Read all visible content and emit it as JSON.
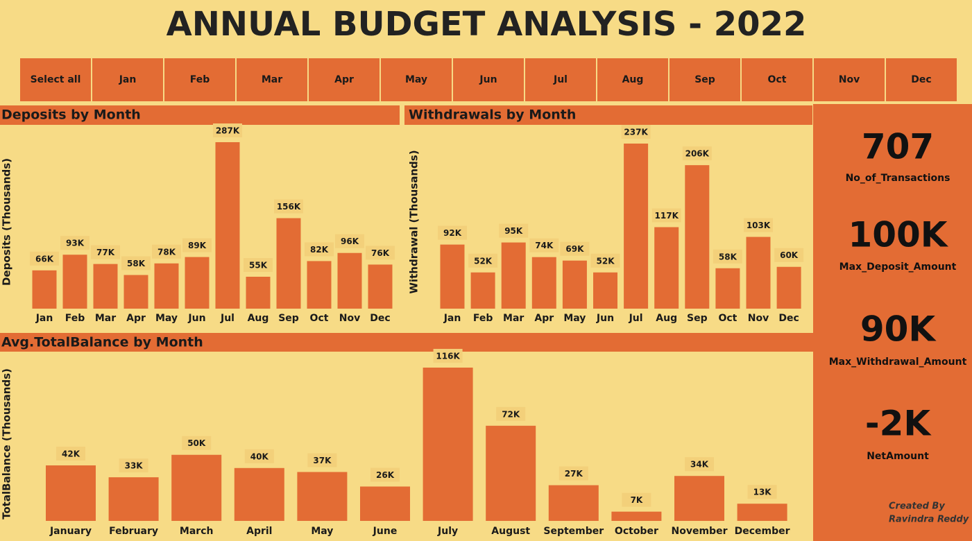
{
  "title": "ANNUAL BUDGET ANALYSIS - 2022",
  "slicer": [
    "Select all",
    "Jan",
    "Feb",
    "Mar",
    "Apr",
    "May",
    "Jun",
    "Jul",
    "Aug",
    "Sep",
    "Oct",
    "Nov",
    "Dec"
  ],
  "chart_data": [
    {
      "type": "bar",
      "title": "Deposits by Month",
      "y_label": "Deposits (Thousands)",
      "color": "#e36c34",
      "categories": [
        "Jan",
        "Feb",
        "Mar",
        "Apr",
        "May",
        "Jun",
        "Jul",
        "Aug",
        "Sep",
        "Oct",
        "Nov",
        "Dec"
      ],
      "values": [
        66,
        93,
        77,
        58,
        78,
        89,
        287,
        55,
        156,
        82,
        96,
        76
      ],
      "value_labels": [
        "66K",
        "93K",
        "77K",
        "58K",
        "78K",
        "89K",
        "287K",
        "55K",
        "156K",
        "82K",
        "96K",
        "76K"
      ]
    },
    {
      "type": "bar",
      "title": "Withdrawals by Month",
      "y_label": "Withdrawal (Thousands)",
      "color": "#e36c34",
      "categories": [
        "Jan",
        "Feb",
        "Mar",
        "Apr",
        "May",
        "Jun",
        "Jul",
        "Aug",
        "Sep",
        "Oct",
        "Nov",
        "Dec"
      ],
      "values": [
        92,
        52,
        95,
        74,
        69,
        52,
        237,
        117,
        206,
        58,
        103,
        60
      ],
      "value_labels": [
        "92K",
        "52K",
        "95K",
        "74K",
        "69K",
        "52K",
        "237K",
        "117K",
        "206K",
        "58K",
        "103K",
        "60K"
      ]
    },
    {
      "type": "bar",
      "title": "Avg.TotalBalance by Month",
      "y_label": "TotalBalance (Thousands)",
      "color": "#e36c34",
      "categories": [
        "January",
        "February",
        "March",
        "April",
        "May",
        "June",
        "July",
        "August",
        "September",
        "October",
        "November",
        "December"
      ],
      "values": [
        42,
        33,
        50,
        40,
        37,
        26,
        116,
        72,
        27,
        7,
        34,
        13
      ],
      "value_labels": [
        "42K",
        "33K",
        "50K",
        "40K",
        "37K",
        "26K",
        "116K",
        "72K",
        "27K",
        "7K",
        "34K",
        "13K"
      ]
    }
  ],
  "kpis": [
    {
      "value": "707",
      "label": "No_of_Transactions"
    },
    {
      "value": "100K",
      "label": "Max_Deposit_Amount"
    },
    {
      "value": "90K",
      "label": "Max_Withdrawal_Amount"
    },
    {
      "value": "-2K",
      "label": "NetAmount"
    }
  ],
  "credit": [
    "Created By",
    "Ravindra Reddy"
  ]
}
